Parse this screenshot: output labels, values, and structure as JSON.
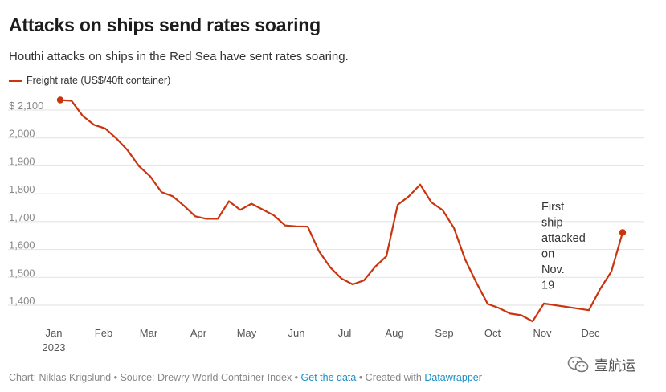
{
  "title": "Attacks on ships send rates soaring",
  "subtitle": "Houthi attacks on ships in the Red Sea have sent rates soaring.",
  "colors": {
    "line": "#c9350f",
    "grid": "#e2e2e2",
    "axis_text": "#888888"
  },
  "footer": {
    "prefix": "Chart: Niklas Krigslund • Source: Drewry World Container Index •",
    "get_data": "Get the data",
    "middle": "• Created with",
    "tool": "Datawrapper"
  },
  "watermark": {
    "text": "壹航运",
    "icon": "wechat-icon"
  },
  "chart_data": {
    "type": "line",
    "title": "Attacks on ships send rates soaring",
    "subtitle": "Houthi attacks on ships in the Red Sea have sent rates soaring.",
    "legend": "top-left",
    "ylim": [
      1340,
      2140
    ],
    "yticks": [
      1400,
      1500,
      1600,
      1700,
      1800,
      1900,
      2000,
      2100
    ],
    "ytick_labels": [
      "1,400",
      "1,500",
      "1,600",
      "1,700",
      "1,800",
      "1,900",
      "2,000",
      "$ 2,100"
    ],
    "grid": true,
    "xlim": [
      "2023-01-01",
      "2023-12-31"
    ],
    "xticks": [
      {
        "date": "2023-01-01",
        "label": "Jan",
        "sublabel": "2023"
      },
      {
        "date": "2023-02-01",
        "label": "Feb",
        "sublabel": ""
      },
      {
        "date": "2023-03-01",
        "label": "Mar",
        "sublabel": ""
      },
      {
        "date": "2023-04-01",
        "label": "Apr",
        "sublabel": ""
      },
      {
        "date": "2023-05-01",
        "label": "May",
        "sublabel": ""
      },
      {
        "date": "2023-06-01",
        "label": "Jun",
        "sublabel": ""
      },
      {
        "date": "2023-07-01",
        "label": "Jul",
        "sublabel": ""
      },
      {
        "date": "2023-08-01",
        "label": "Aug",
        "sublabel": ""
      },
      {
        "date": "2023-09-01",
        "label": "Sep",
        "sublabel": ""
      },
      {
        "date": "2023-10-01",
        "label": "Oct",
        "sublabel": ""
      },
      {
        "date": "2023-11-01",
        "label": "Nov",
        "sublabel": ""
      },
      {
        "date": "2023-12-01",
        "label": "Dec",
        "sublabel": ""
      }
    ],
    "series": [
      {
        "name": "Freight rate (US$/40ft container)",
        "color": "#c9350f",
        "points": [
          {
            "x": "2023-01-05",
            "y": 2136
          },
          {
            "x": "2023-01-12",
            "y": 2133
          },
          {
            "x": "2023-01-19",
            "y": 2079
          },
          {
            "x": "2023-01-26",
            "y": 2047
          },
          {
            "x": "2023-02-02",
            "y": 2034
          },
          {
            "x": "2023-02-09",
            "y": 1998
          },
          {
            "x": "2023-02-16",
            "y": 1955
          },
          {
            "x": "2023-02-23",
            "y": 1899
          },
          {
            "x": "2023-03-02",
            "y": 1862
          },
          {
            "x": "2023-03-09",
            "y": 1806
          },
          {
            "x": "2023-03-16",
            "y": 1791
          },
          {
            "x": "2023-03-23",
            "y": 1757
          },
          {
            "x": "2023-03-30",
            "y": 1719
          },
          {
            "x": "2023-04-06",
            "y": 1710
          },
          {
            "x": "2023-04-13",
            "y": 1710
          },
          {
            "x": "2023-04-20",
            "y": 1773
          },
          {
            "x": "2023-04-27",
            "y": 1742
          },
          {
            "x": "2023-05-04",
            "y": 1764
          },
          {
            "x": "2023-05-11",
            "y": 1743
          },
          {
            "x": "2023-05-18",
            "y": 1722
          },
          {
            "x": "2023-05-25",
            "y": 1686
          },
          {
            "x": "2023-06-01",
            "y": 1683
          },
          {
            "x": "2023-06-08",
            "y": 1682
          },
          {
            "x": "2023-06-15",
            "y": 1594
          },
          {
            "x": "2023-06-22",
            "y": 1536
          },
          {
            "x": "2023-06-29",
            "y": 1496
          },
          {
            "x": "2023-07-06",
            "y": 1475
          },
          {
            "x": "2023-07-13",
            "y": 1489
          },
          {
            "x": "2023-07-20",
            "y": 1538
          },
          {
            "x": "2023-07-27",
            "y": 1576
          },
          {
            "x": "2023-08-03",
            "y": 1760
          },
          {
            "x": "2023-08-10",
            "y": 1791
          },
          {
            "x": "2023-08-17",
            "y": 1833
          },
          {
            "x": "2023-08-24",
            "y": 1769
          },
          {
            "x": "2023-08-31",
            "y": 1741
          },
          {
            "x": "2023-09-07",
            "y": 1677
          },
          {
            "x": "2023-09-14",
            "y": 1564
          },
          {
            "x": "2023-09-21",
            "y": 1481
          },
          {
            "x": "2023-09-28",
            "y": 1405
          },
          {
            "x": "2023-10-05",
            "y": 1390
          },
          {
            "x": "2023-10-12",
            "y": 1370
          },
          {
            "x": "2023-10-19",
            "y": 1364
          },
          {
            "x": "2023-10-26",
            "y": 1342
          },
          {
            "x": "2023-11-02",
            "y": 1406
          },
          {
            "x": "2023-11-30",
            "y": 1382
          },
          {
            "x": "2023-12-07",
            "y": 1458
          },
          {
            "x": "2023-12-14",
            "y": 1521
          },
          {
            "x": "2023-12-21",
            "y": 1661
          }
        ],
        "end_markers": true
      }
    ],
    "annotations": [
      {
        "text_lines": [
          "First",
          "ship",
          "attacked",
          "on",
          "Nov.",
          "19"
        ],
        "x": "2023-11-01",
        "y": 1715
      }
    ]
  }
}
